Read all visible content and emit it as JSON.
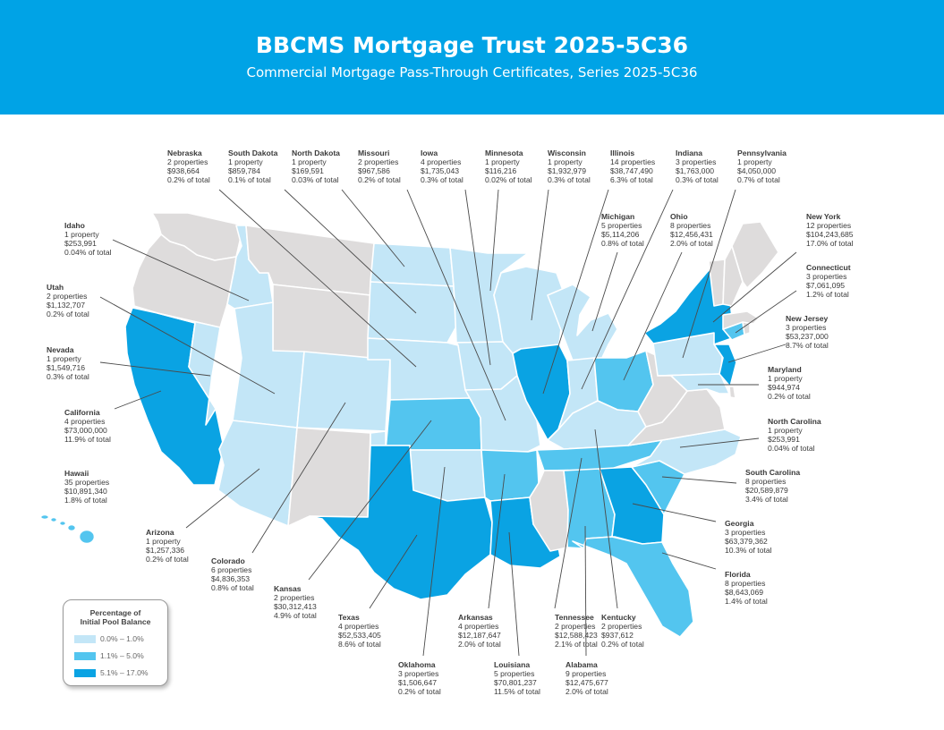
{
  "header": {
    "title": "BBCMS Mortgage Trust 2025-5C36",
    "subtitle": "Commercial Mortgage Pass-Through Certificates, Series 2025-5C36"
  },
  "colors": {
    "banner": "#00a3e6",
    "light": "#c3e6f7",
    "mid": "#53c5ef",
    "dark": "#0aa3e3",
    "none": "#dedcdc"
  },
  "legend": {
    "title_line1": "Percentage of",
    "title_line2": "Initial Pool Balance",
    "items": [
      {
        "label": "0.0% – 1.0%",
        "tier": "light"
      },
      {
        "label": "1.1% – 5.0%",
        "tier": "mid"
      },
      {
        "label": "5.1% – 17.0%",
        "tier": "dark"
      }
    ]
  },
  "states": [
    {
      "key": "NE",
      "name": "Nebraska",
      "properties": "2 properties",
      "amount": "$938,664",
      "share": "0.2% of total"
    },
    {
      "key": "SD",
      "name": "South Dakota",
      "properties": "1 property",
      "amount": "$859,784",
      "share": "0.1% of total"
    },
    {
      "key": "ND",
      "name": "North Dakota",
      "properties": "1 property",
      "amount": "$169,591",
      "share": "0.03% of total"
    },
    {
      "key": "MO",
      "name": "Missouri",
      "properties": "2 properties",
      "amount": "$967,586",
      "share": "0.2% of total"
    },
    {
      "key": "IA",
      "name": "Iowa",
      "properties": "4 properties",
      "amount": "$1,735,043",
      "share": "0.3% of total"
    },
    {
      "key": "MN",
      "name": "Minnesota",
      "properties": "1 property",
      "amount": "$116,216",
      "share": "0.02% of total"
    },
    {
      "key": "WI",
      "name": "Wisconsin",
      "properties": "1 property",
      "amount": "$1,932,979",
      "share": "0.3% of total"
    },
    {
      "key": "IL",
      "name": "Illinois",
      "properties": "14 properties",
      "amount": "$38,747,490",
      "share": "6.3% of total"
    },
    {
      "key": "IN",
      "name": "Indiana",
      "properties": "3 properties",
      "amount": "$1,763,000",
      "share": "0.3% of total"
    },
    {
      "key": "PA",
      "name": "Pennsylvania",
      "properties": "1 property",
      "amount": "$4,050,000",
      "share": "0.7% of total"
    },
    {
      "key": "MI",
      "name": "Michigan",
      "properties": "5 properties",
      "amount": "$5,114,206",
      "share": "0.8% of total"
    },
    {
      "key": "OH",
      "name": "Ohio",
      "properties": "8 properties",
      "amount": "$12,456,431",
      "share": "2.0% of total"
    },
    {
      "key": "NY",
      "name": "New York",
      "properties": "12 properties",
      "amount": "$104,243,685",
      "share": "17.0% of total"
    },
    {
      "key": "CT",
      "name": "Connecticut",
      "properties": "3 properties",
      "amount": "$7,061,095",
      "share": "1.2% of total"
    },
    {
      "key": "NJ",
      "name": "New Jersey",
      "properties": "3 properties",
      "amount": "$53,237,000",
      "share": "8.7% of total"
    },
    {
      "key": "MD",
      "name": "Maryland",
      "properties": "1 property",
      "amount": "$944,974",
      "share": "0.2% of total"
    },
    {
      "key": "NC",
      "name": "North Carolina",
      "properties": "1 property",
      "amount": "$253,991",
      "share": "0.04% of total"
    },
    {
      "key": "SC",
      "name": "South Carolina",
      "properties": "8 properties",
      "amount": "$20,589,879",
      "share": "3.4% of total"
    },
    {
      "key": "GA",
      "name": "Georgia",
      "properties": "3 properties",
      "amount": "$63,379,362",
      "share": "10.3% of total"
    },
    {
      "key": "FL",
      "name": "Florida",
      "properties": "8 properties",
      "amount": "$8,643,069",
      "share": "1.4% of total"
    },
    {
      "key": "ID",
      "name": "Idaho",
      "properties": "1 property",
      "amount": "$253,991",
      "share": "0.04% of total"
    },
    {
      "key": "UT",
      "name": "Utah",
      "properties": "2 properties",
      "amount": "$1,132,707",
      "share": "0.2% of total"
    },
    {
      "key": "NV",
      "name": "Nevada",
      "properties": "1 property",
      "amount": "$1,549,716",
      "share": "0.3% of total"
    },
    {
      "key": "CA",
      "name": "California",
      "properties": "4 properties",
      "amount": "$73,000,000",
      "share": "11.9% of total"
    },
    {
      "key": "HI",
      "name": "Hawaii",
      "properties": "35 properties",
      "amount": "$10,891,340",
      "share": "1.8% of total"
    },
    {
      "key": "AZ",
      "name": "Arizona",
      "properties": "1 property",
      "amount": "$1,257,336",
      "share": "0.2% of total"
    },
    {
      "key": "CO",
      "name": "Colorado",
      "properties": "6 properties",
      "amount": "$4,836,353",
      "share": "0.8% of total"
    },
    {
      "key": "KS",
      "name": "Kansas",
      "properties": "2 properties",
      "amount": "$30,312,413",
      "share": "4.9% of total"
    },
    {
      "key": "TX",
      "name": "Texas",
      "properties": "4 properties",
      "amount": "$52,533,405",
      "share": "8.6% of total"
    },
    {
      "key": "OK",
      "name": "Oklahoma",
      "properties": "3 properties",
      "amount": "$1,506,647",
      "share": "0.2% of total"
    },
    {
      "key": "AR",
      "name": "Arkansas",
      "properties": "4 properties",
      "amount": "$12,187,647",
      "share": "2.0% of total"
    },
    {
      "key": "LA",
      "name": "Louisiana",
      "properties": "5 properties",
      "amount": "$70,801,237",
      "share": "11.5% of total"
    },
    {
      "key": "TN",
      "name": "Tennessee",
      "properties": "2 properties",
      "amount": "$12,588,423",
      "share": "2.1% of total"
    },
    {
      "key": "KY",
      "name": "Kentucky",
      "properties": "2 properties",
      "amount": "$937,612",
      "share": "0.2% of total"
    },
    {
      "key": "AL",
      "name": "Alabama",
      "properties": "9 properties",
      "amount": "$12,475,677",
      "share": "2.0% of total"
    }
  ]
}
